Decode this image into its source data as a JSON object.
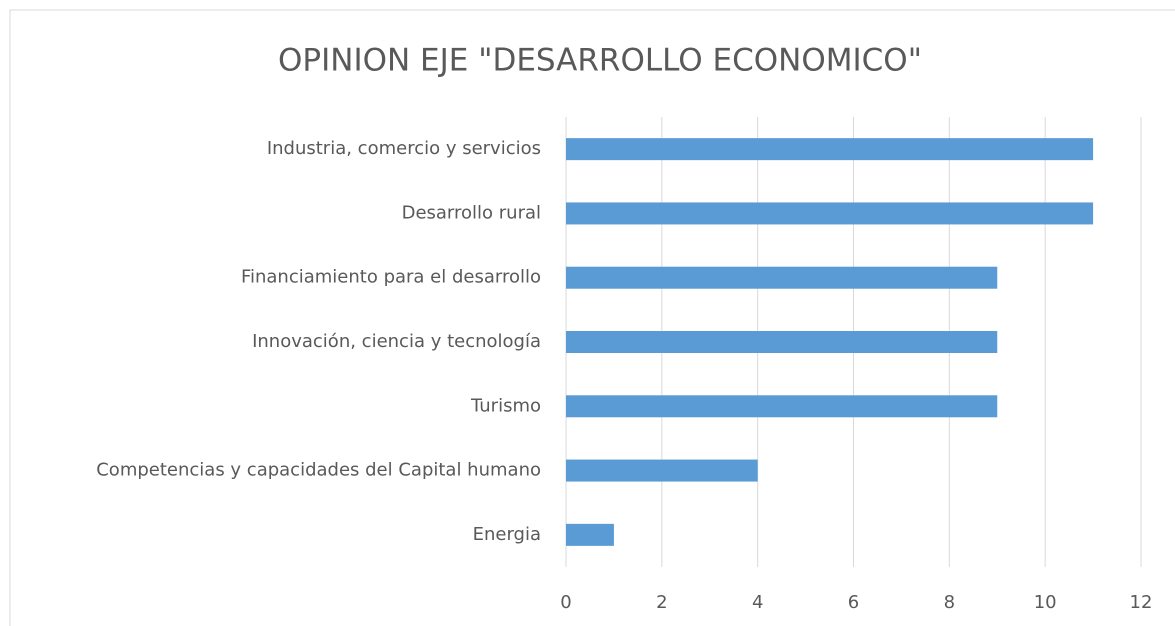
{
  "chart_data": {
    "type": "bar",
    "orientation": "horizontal",
    "title": "OPINION EJE \"DESARROLLO ECONOMICO\"",
    "categories": [
      "Industria, comercio y servicios",
      "Desarrollo rural",
      "Financiamiento para el desarrollo",
      "Innovación, ciencia y tecnología",
      "Turismo",
      "Competencias y capacidades del Capital humano",
      "Energia"
    ],
    "values": [
      11,
      11,
      9,
      9,
      9,
      4,
      1
    ],
    "color": "#5b9bd5",
    "xlim": [
      0,
      12
    ],
    "xticks": [
      0,
      2,
      4,
      6,
      8,
      10,
      12
    ],
    "grid": true
  }
}
